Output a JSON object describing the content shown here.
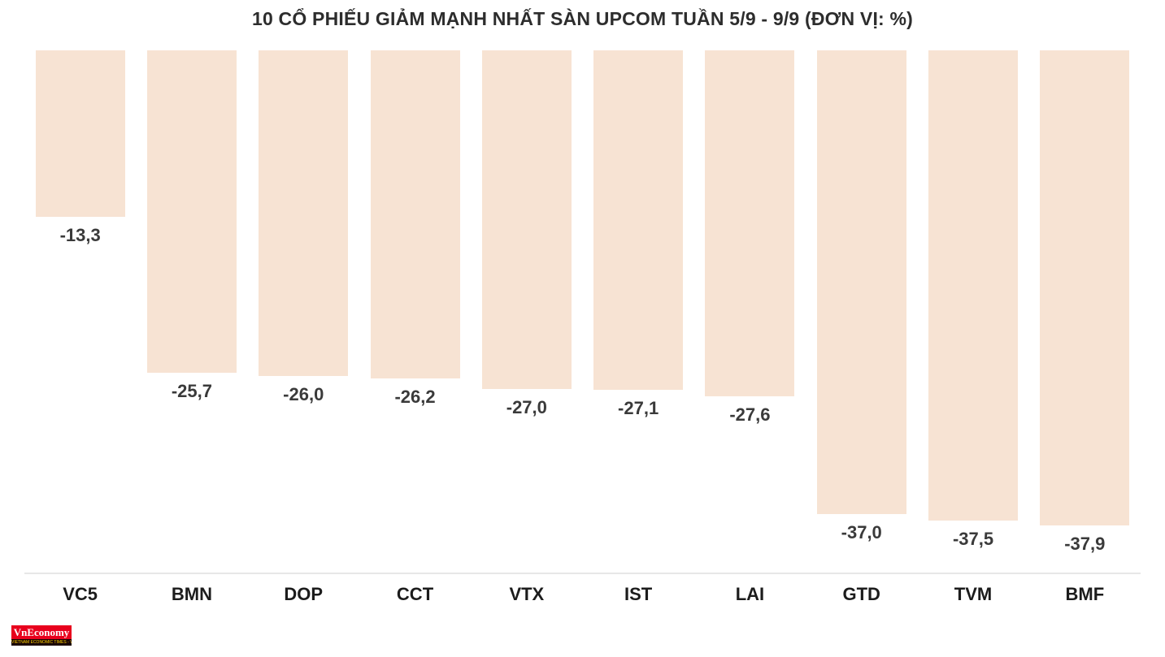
{
  "title": "10 CỔ PHIẾU GIẢM MẠNH NHẤT SÀN UPCOM TUẦN 5/9 - 9/9 (ĐƠN VỊ: %)",
  "chart_data": {
    "type": "bar",
    "orientation": "vertical-negative",
    "baseline": "top",
    "categories": [
      "VC5",
      "BMN",
      "DOP",
      "CCT",
      "VTX",
      "IST",
      "LAI",
      "GTD",
      "TVM",
      "BMF"
    ],
    "values": [
      -13.3,
      -25.7,
      -26.0,
      -26.2,
      -27.0,
      -27.1,
      -27.6,
      -37.0,
      -37.5,
      -37.9
    ],
    "value_labels": [
      "-13,3",
      "-25,7",
      "-26,0",
      "-26,2",
      "-27,0",
      "-27,1",
      "-27,6",
      "-37,0",
      "-37,5",
      "-37,9"
    ],
    "bar_color": "#f7e3d3",
    "ylim": [
      -40,
      0
    ],
    "grid": false,
    "legend": "none",
    "unit": "%"
  },
  "footer": {
    "logo_text": "VnEconomy",
    "logo_tagline": "VIETNAM ECONOMIC TIMES - VNECONOMY.VN",
    "logo_bg": "#e8001d",
    "logo_text_color": "#ffffff",
    "logo_tagline_color": "#ffd400"
  }
}
